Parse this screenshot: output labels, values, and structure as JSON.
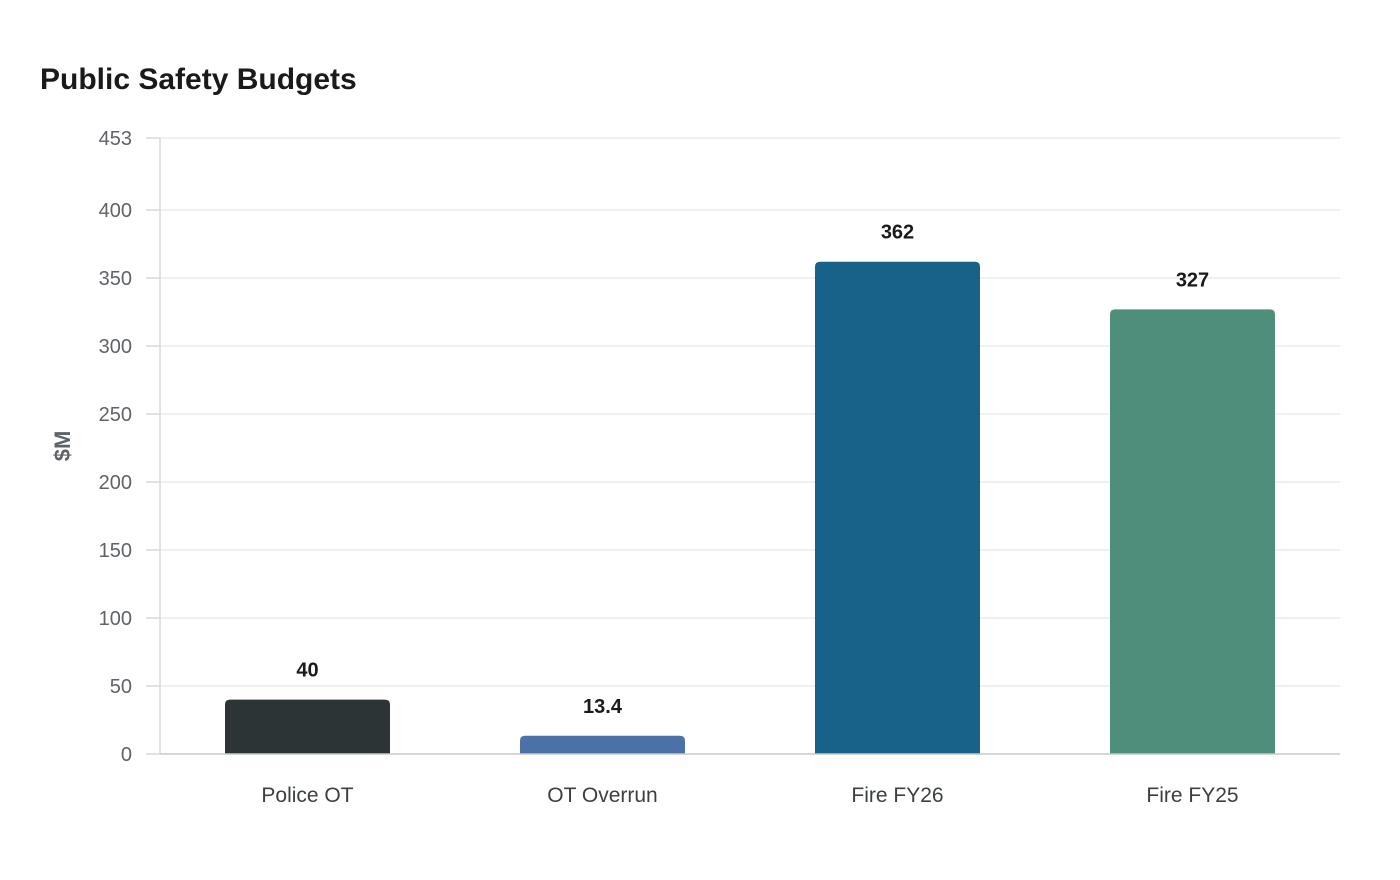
{
  "chart_data": {
    "type": "bar",
    "title": "Public Safety Budgets",
    "xlabel": "",
    "ylabel": "$M",
    "categories": [
      "Police OT",
      "OT Overrun",
      "Fire FY26",
      "Fire FY25"
    ],
    "values": [
      40,
      13.4,
      362,
      327
    ],
    "value_labels": [
      "40",
      "13.4",
      "362",
      "327"
    ],
    "colors": [
      "#2d3436",
      "#4a72a6",
      "#186288",
      "#4e8e7b"
    ],
    "ylim": [
      0,
      453
    ],
    "yticks": [
      0,
      50,
      100,
      150,
      200,
      250,
      300,
      350,
      400,
      453
    ],
    "grid": true,
    "legend": "none"
  }
}
